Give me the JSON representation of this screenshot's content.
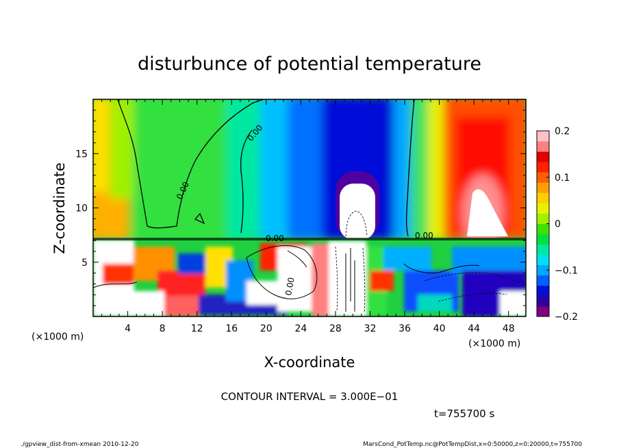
{
  "chart_data": {
    "type": "heatmap",
    "title": "disturbunce of potential temperature",
    "xlabel": "X-coordinate",
    "ylabel": "Z-coordinate",
    "x_unit": "(×1000 m)",
    "z_unit": "(×1000 m)",
    "xlim": [
      0,
      50
    ],
    "zlim": [
      0,
      20
    ],
    "x_ticks": [
      4,
      8,
      12,
      16,
      20,
      24,
      28,
      32,
      36,
      40,
      44,
      48
    ],
    "z_ticks": [
      5,
      10,
      15
    ],
    "colorbar": {
      "range": [
        -0.2,
        0.2
      ],
      "ticks": [
        {
          "value": 0.2,
          "label": "0.2"
        },
        {
          "value": 0.1,
          "label": "0.1"
        },
        {
          "value": 0,
          "label": "0"
        },
        {
          "value": -0.1,
          "label": "−0.1"
        },
        {
          "value": -0.2,
          "label": "−0.2"
        }
      ],
      "colors": [
        "#800080",
        "#3000a0",
        "#0010d8",
        "#0060ff",
        "#00a8ff",
        "#00e0f0",
        "#00e8a0",
        "#00e040",
        "#40e000",
        "#a0f000",
        "#e8f000",
        "#ffd000",
        "#ffa000",
        "#ff6000",
        "#ff2000",
        "#e00000",
        "#ff8080",
        "#ffc0c8"
      ]
    },
    "field_features": [
      {
        "x": 5,
        "z": 15,
        "value": 0.02,
        "description": "green region"
      },
      {
        "x": 31,
        "z": 13,
        "value": -0.19,
        "description": "cold dome"
      },
      {
        "x": 31,
        "z": 9,
        "value": -0.25,
        "description": "below colour scale (white)"
      },
      {
        "x": 44,
        "z": 15,
        "value": 0.16,
        "description": "warm region"
      },
      {
        "x": 45,
        "z": 10,
        "value": 0.25,
        "description": "above colour scale (white)"
      }
    ],
    "contour_labels": [
      "0.00",
      "0.00",
      "0.00",
      "0.00",
      "0.00"
    ],
    "contour_interval_text": "CONTOUR INTERVAL = 3.000E−01",
    "time_text": "t=755700  s"
  },
  "footer": {
    "left": "./gpview_dist-from-xmean   2010-12-20",
    "right": "MarsCond_PotTemp.nc@PotTempDist,x=0:50000,z=0:20000,t=755700"
  }
}
